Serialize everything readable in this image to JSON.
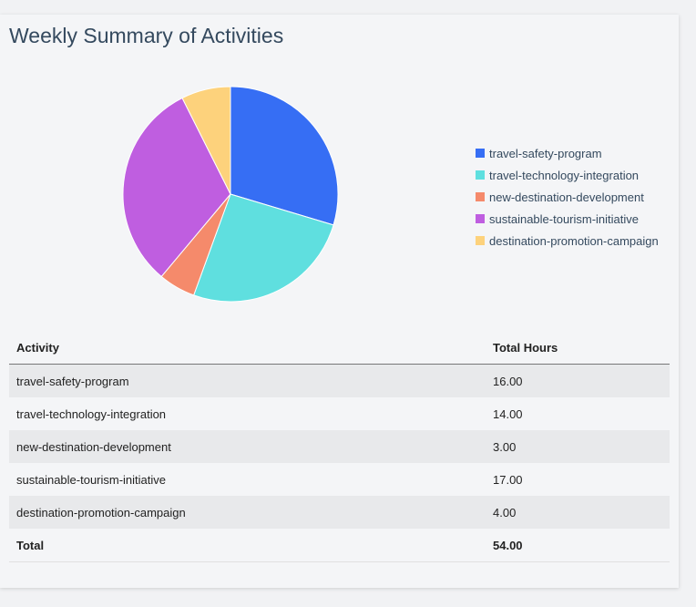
{
  "title": "Weekly Summary of Activities",
  "chart_data": {
    "type": "pie",
    "categories": [
      "travel-safety-program",
      "travel-technology-integration",
      "new-destination-development",
      "sustainable-tourism-initiative",
      "destination-promotion-campaign"
    ],
    "values": [
      16,
      14,
      3,
      17,
      4
    ],
    "colors": [
      "#366ef4",
      "#5fdfdf",
      "#f58a6b",
      "#bf5ee0",
      "#fdd27c"
    ],
    "legend_position": "right"
  },
  "table": {
    "headers": [
      "Activity",
      "Total Hours"
    ],
    "rows": [
      [
        "travel-safety-program",
        "16.00"
      ],
      [
        "travel-technology-integration",
        "14.00"
      ],
      [
        "new-destination-development",
        "3.00"
      ],
      [
        "sustainable-tourism-initiative",
        "17.00"
      ],
      [
        "destination-promotion-campaign",
        "4.00"
      ]
    ],
    "total": [
      "Total",
      "54.00"
    ]
  }
}
